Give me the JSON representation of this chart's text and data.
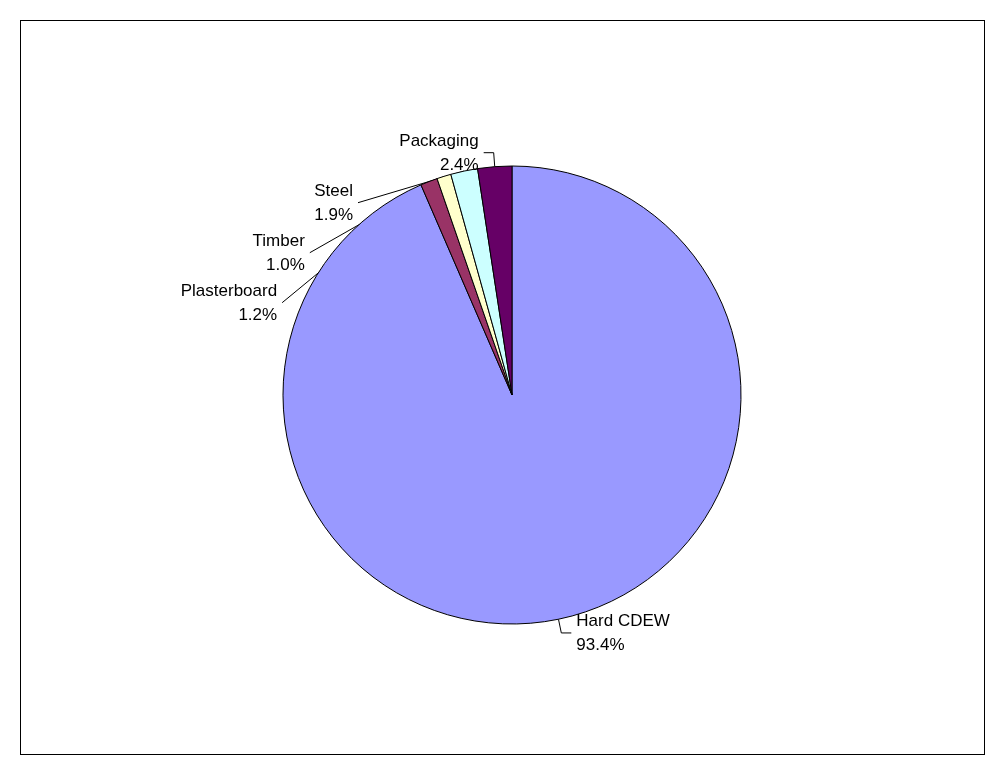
{
  "chart_data": {
    "type": "pie",
    "categories": [
      "Hard CDEW",
      "Plasterboard",
      "Timber",
      "Steel",
      "Packaging"
    ],
    "values": [
      93.4,
      1.2,
      1.0,
      1.9,
      2.4
    ],
    "value_labels": [
      "93.4%",
      "1.2%",
      "1.0%",
      "1.9%",
      "2.4%"
    ],
    "colors": [
      "#9999ff",
      "#993366",
      "#ffffcc",
      "#ccffff",
      "#660066"
    ],
    "legend": false
  }
}
